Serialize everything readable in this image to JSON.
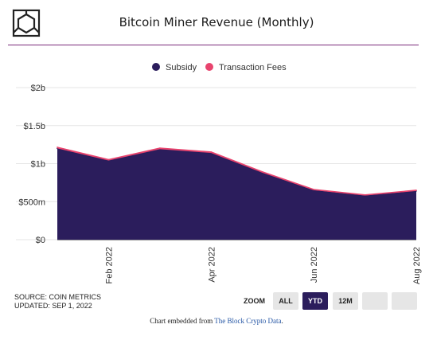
{
  "chart_data": {
    "type": "area",
    "title": "Bitcoin Miner Revenue (Monthly)",
    "xlabel": "",
    "ylabel": "",
    "x": [
      "2022-01",
      "2022-02",
      "2022-03",
      "2022-04",
      "2022-05",
      "2022-06",
      "2022-07",
      "2022-08"
    ],
    "x_tick_labels": [
      {
        "x": "2022-02",
        "label": "Feb 2022"
      },
      {
        "x": "2022-04",
        "label": "Apr 2022"
      },
      {
        "x": "2022-06",
        "label": "Jun 2022"
      },
      {
        "x": "2022-08",
        "label": "Aug 2022"
      }
    ],
    "y_ticks": [
      {
        "value": 0,
        "label": "$0"
      },
      {
        "value": 500000000,
        "label": "$500m"
      },
      {
        "value": 1000000000,
        "label": "$1b"
      },
      {
        "value": 1500000000,
        "label": "$1.5b"
      },
      {
        "value": 2000000000,
        "label": "$2b"
      }
    ],
    "ylim": [
      0,
      2000000000
    ],
    "stacked": true,
    "grid": true,
    "legend_position": "top-center",
    "series": [
      {
        "name": "Subsidy",
        "color": "#2b1d5c",
        "values": [
          1200000000,
          1040000000,
          1190000000,
          1140000000,
          880000000,
          650000000,
          580000000,
          640000000
        ]
      },
      {
        "name": "Transaction Fees",
        "color": "#e8446e",
        "values": [
          15000000,
          13000000,
          14000000,
          13000000,
          12000000,
          10000000,
          9000000,
          10000000
        ]
      }
    ]
  },
  "footer": {
    "source_line": "SOURCE: COIN METRICS",
    "updated_line": "UPDATED: SEP 1, 2022"
  },
  "zoom": {
    "label": "ZOOM",
    "buttons": [
      {
        "label": "ALL",
        "active": false
      },
      {
        "label": "YTD",
        "active": true
      },
      {
        "label": "12M",
        "active": false
      },
      {
        "label": "",
        "active": false
      },
      {
        "label": "",
        "active": false
      }
    ]
  },
  "embed": {
    "prefix": "Chart embedded from ",
    "link_text": "The Block Crypto Data",
    "suffix": "."
  },
  "colors": {
    "title_rule": "#7a2a7a",
    "grid": "#e6e6e6",
    "active_button": "#2b1d5c"
  }
}
